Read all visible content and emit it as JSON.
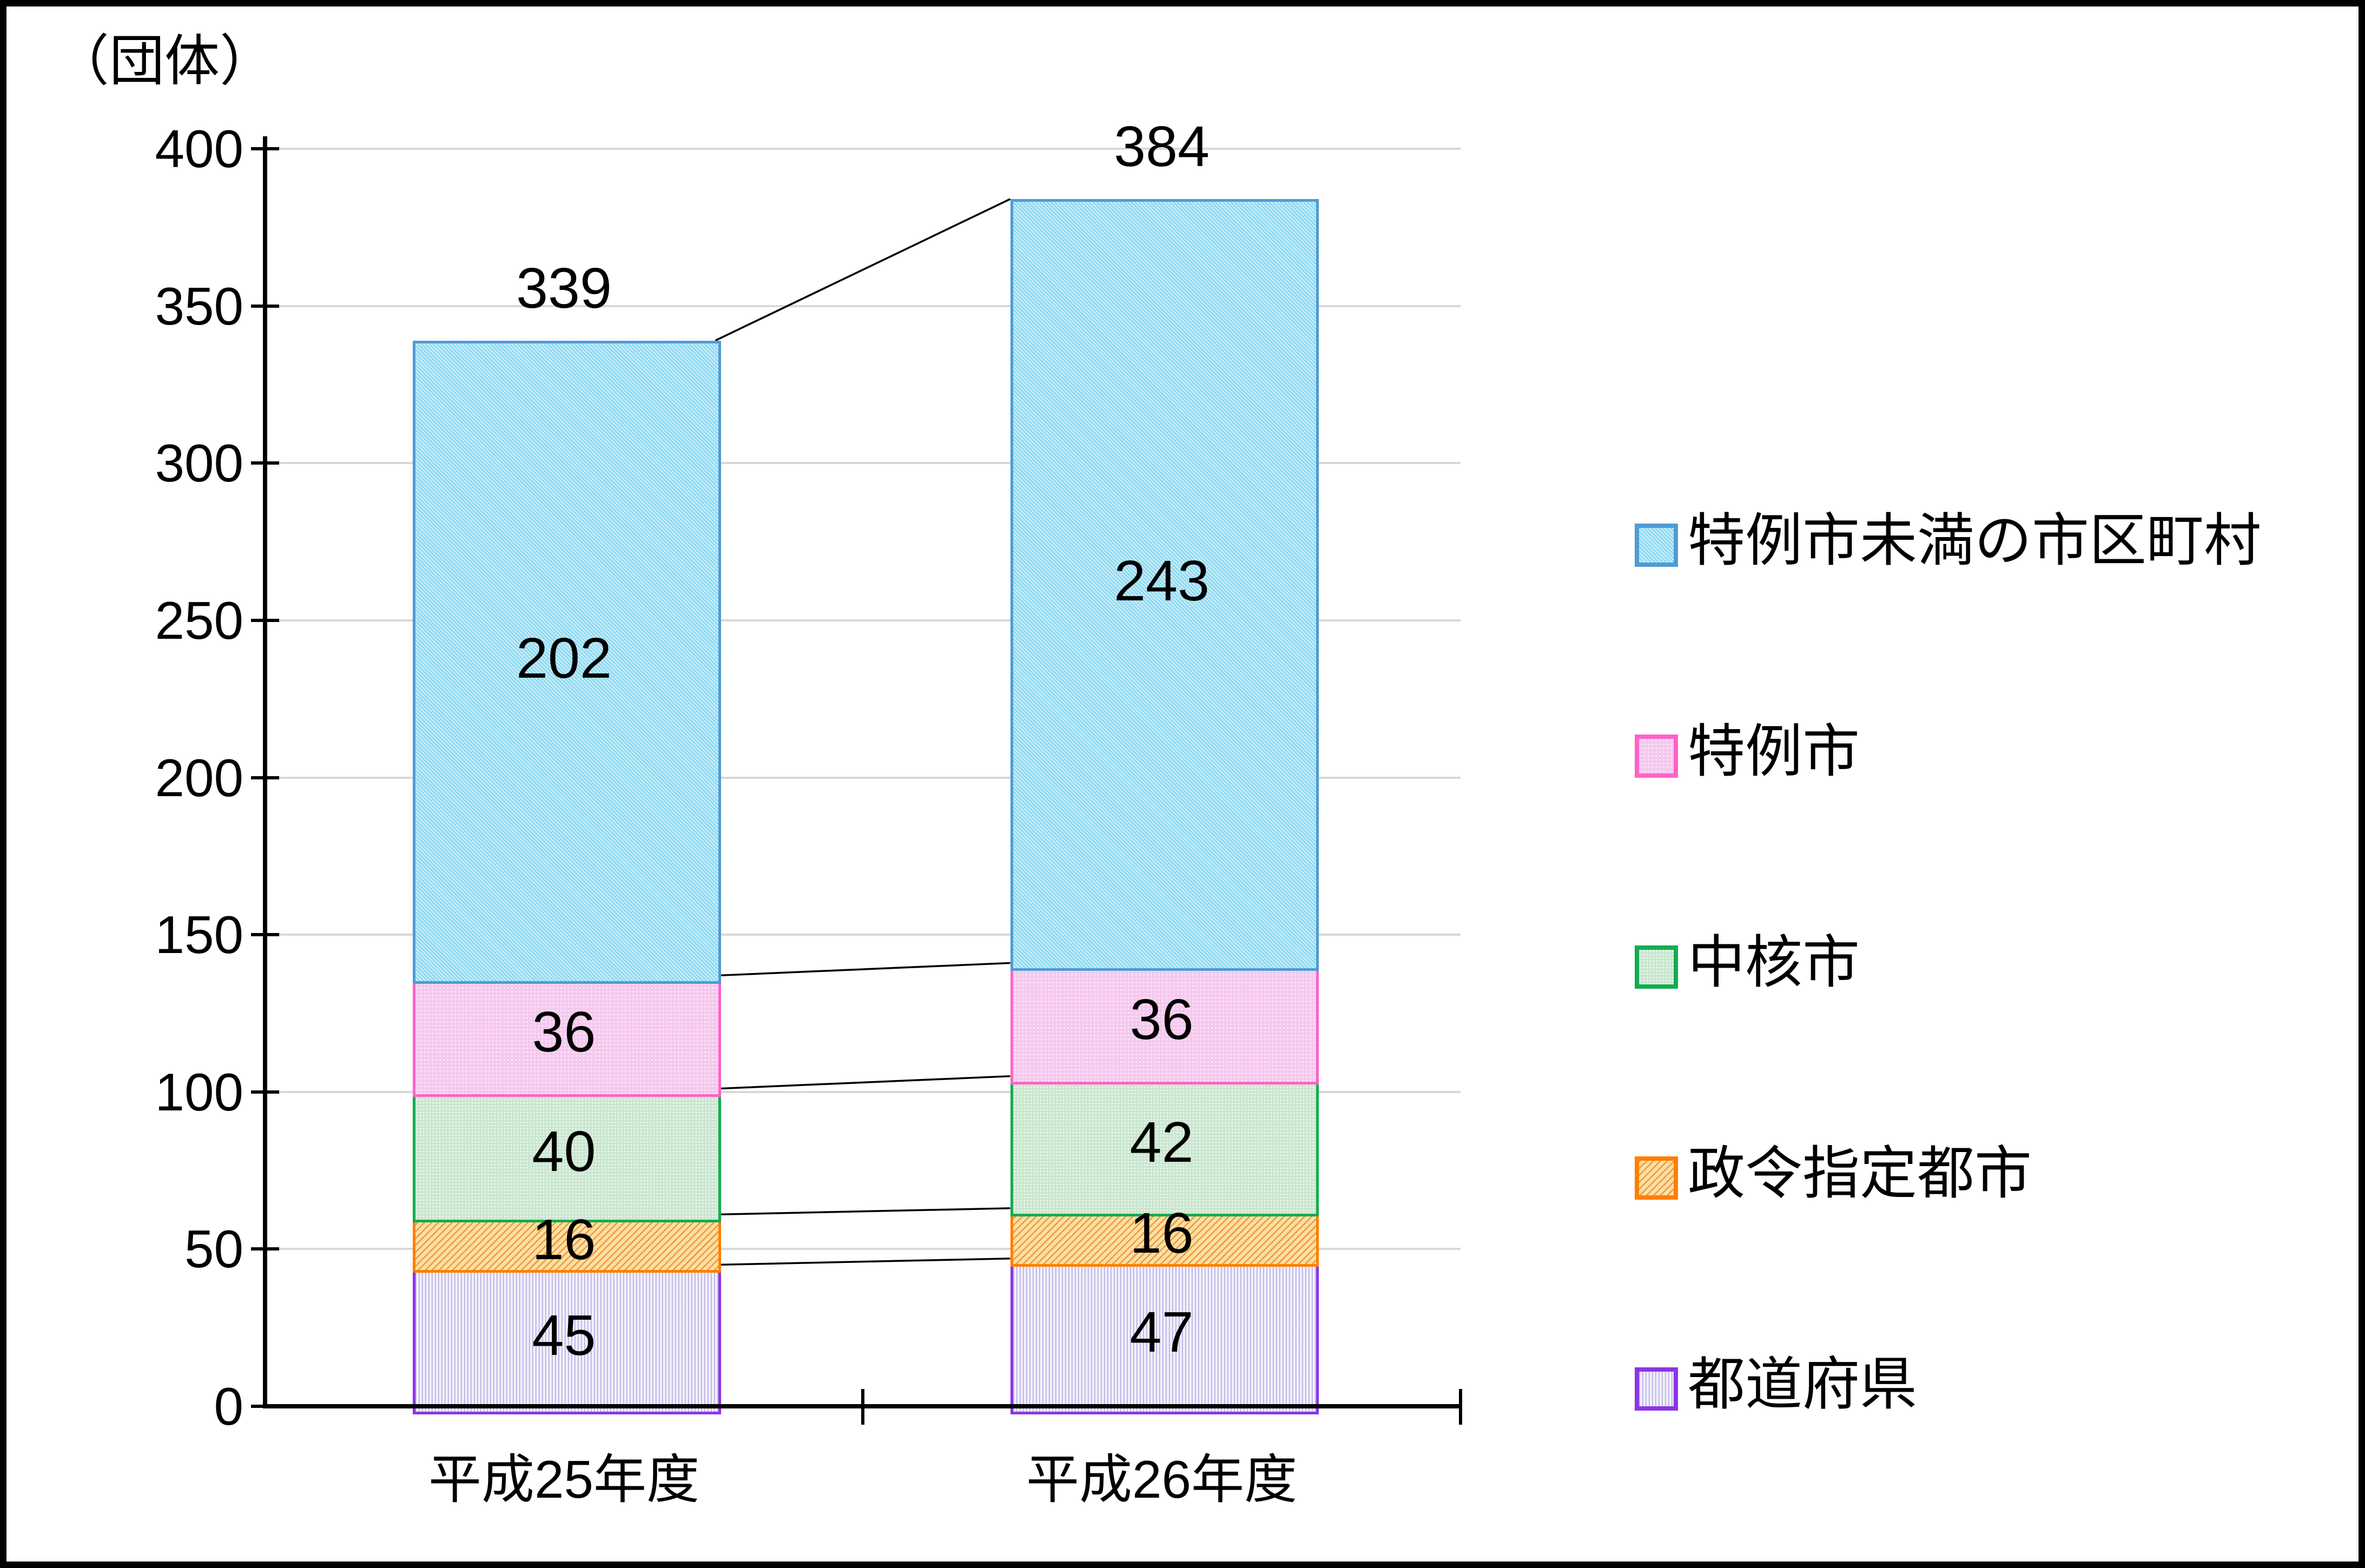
{
  "chart_data": {
    "type": "bar",
    "stacked": true,
    "unit_label": "（団体）",
    "categories": [
      "平成25年度",
      "平成26年度"
    ],
    "series": [
      {
        "name": "都道府県",
        "values": [
          45,
          47
        ],
        "border_color": "#8C35E8",
        "pattern": "stripes-purple"
      },
      {
        "name": "政令指定都市",
        "values": [
          16,
          16
        ],
        "border_color": "#FF7F00",
        "pattern": "hatch-orange"
      },
      {
        "name": "中核市",
        "values": [
          40,
          42
        ],
        "border_color": "#12AD50",
        "pattern": "dots-green"
      },
      {
        "name": "特例市",
        "values": [
          36,
          36
        ],
        "border_color": "#FF63C8",
        "pattern": "dots-pink"
      },
      {
        "name": "特例市未満の市区町村",
        "values": [
          202,
          243
        ],
        "border_color": "#4F9BD5",
        "pattern": "zigzag-blue"
      }
    ],
    "totals": [
      339,
      384
    ],
    "y_axis": {
      "min": 0,
      "max": 400,
      "step": 50,
      "tick_labels": [
        "0",
        "50",
        "100",
        "150",
        "200",
        "250",
        "300",
        "350",
        "400"
      ]
    },
    "grid": true,
    "grid_color": "#D8D8D8",
    "axis_color": "#000000",
    "connector_color": "#000000",
    "connectors_between_stack_boundaries": true,
    "legend": {
      "position": "right",
      "items_top_to_bottom": [
        "特例市未満の市区町村",
        "特例市",
        "中核市",
        "政令指定都市",
        "都道府県"
      ]
    }
  }
}
